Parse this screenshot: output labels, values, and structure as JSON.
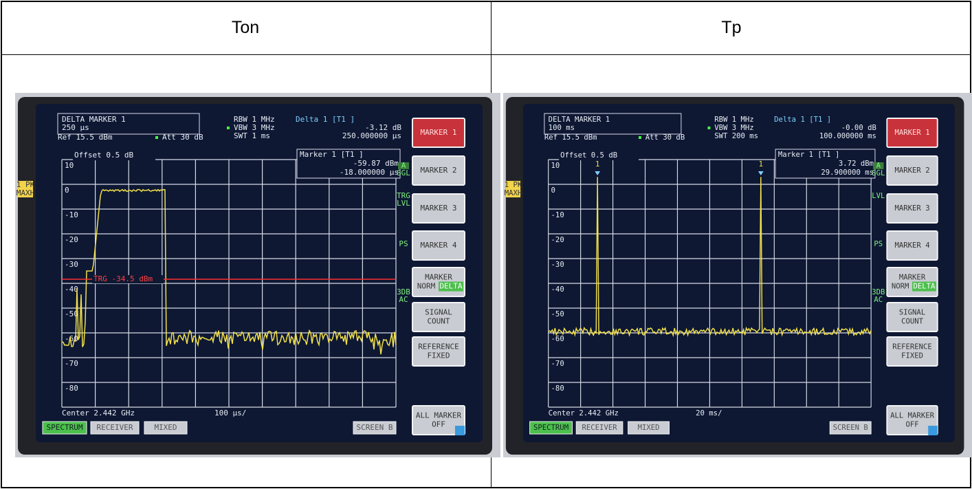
{
  "header": {
    "left": "Ton",
    "right": "Tp"
  },
  "screens": [
    {
      "marker_box": [
        "DELTA MARKER 1",
        "250 µs"
      ],
      "ref": "Ref 15.5 dBm",
      "att": "Att 30 dB",
      "settings": [
        "RBW 1 MHz",
        "VBW 3 MHz",
        "SWT 1 ms"
      ],
      "delta": [
        "Delta 1 [T1 ]",
        "-3.12 dB",
        "250.000000 µs"
      ],
      "offset": "Offset 0.5 dB",
      "marker": [
        "Marker 1 [T1 ]",
        "-59.87 dBm",
        "-18.000000 µs"
      ],
      "trigger": "TRG -34.5 dBm",
      "level_labels": [
        "10",
        "0",
        "-10",
        "-20",
        "-30",
        "-40",
        "-50",
        "-60",
        "-70",
        "-80"
      ],
      "trace_label": [
        "1 PK",
        "MAXH"
      ],
      "status_labels": [
        [
          "A",
          "SGL"
        ],
        [
          "TRG",
          "LVL"
        ],
        [
          "PS"
        ],
        [
          "3DB",
          "AC"
        ]
      ],
      "center": "Center 2.442 GHz",
      "division": "100 µs/",
      "softkeys": [
        {
          "lines": [
            "MARKER 1"
          ]
        },
        {
          "lines": [
            "MARKER 2"
          ]
        },
        {
          "lines": [
            "MARKER 3"
          ]
        },
        {
          "lines": [
            "MARKER 4"
          ]
        },
        {
          "lines": [
            "MARKER"
          ],
          "toggle": [
            "NORM",
            "DELTA"
          ]
        },
        {
          "lines": [
            "SIGNAL",
            "COUNT"
          ]
        },
        {
          "lines": [
            "REFERENCE",
            "FIXED"
          ]
        },
        {
          "lines": [
            "ALL MARKER",
            "OFF"
          ]
        }
      ],
      "bottom_keys": [
        "SPECTRUM",
        "RECEIVER",
        "MIXED",
        "SCREEN B"
      ]
    },
    {
      "marker_box": [
        "DELTA MARKER 1",
        "100 ms"
      ],
      "ref": "Ref 15.5 dBm",
      "att": "Att 30 dB",
      "settings": [
        "RBW 1 MHz",
        "VBW 3 MHz",
        "SWT 200 ms"
      ],
      "delta": [
        "Delta 1 [T1 ]",
        "-0.00 dB",
        "100.000000 ms"
      ],
      "offset": "Offset 0.5 dB",
      "marker": [
        "Marker 1 [T1 ]",
        "3.72 dBm",
        "29.900000 ms"
      ],
      "marker_flags": [
        "1",
        "1"
      ],
      "level_labels": [
        "10",
        "0",
        "-10",
        "-20",
        "-30",
        "-40",
        "-50",
        "-60",
        "-70",
        "-80"
      ],
      "trace_label": [
        "1 PK",
        "MAXH"
      ],
      "status_labels": [
        [
          "A",
          "SGL"
        ],
        [
          "LVL"
        ],
        [
          "PS"
        ],
        [
          "3DB",
          "AC"
        ]
      ],
      "center": "Center 2.442 GHz",
      "division": "20 ms/",
      "softkeys": [
        {
          "lines": [
            "MARKER 1"
          ]
        },
        {
          "lines": [
            "MARKER 2"
          ]
        },
        {
          "lines": [
            "MARKER 3"
          ]
        },
        {
          "lines": [
            "MARKER 4"
          ]
        },
        {
          "lines": [
            "MARKER"
          ],
          "toggle": [
            "NORM",
            "DELTA"
          ]
        },
        {
          "lines": [
            "SIGNAL",
            "COUNT"
          ]
        },
        {
          "lines": [
            "REFERENCE",
            "FIXED"
          ]
        },
        {
          "lines": [
            "ALL MARKER",
            "OFF"
          ]
        }
      ],
      "bottom_keys": [
        "SPECTRUM",
        "RECEIVER",
        "MIXED",
        "SCREEN B"
      ]
    }
  ]
}
